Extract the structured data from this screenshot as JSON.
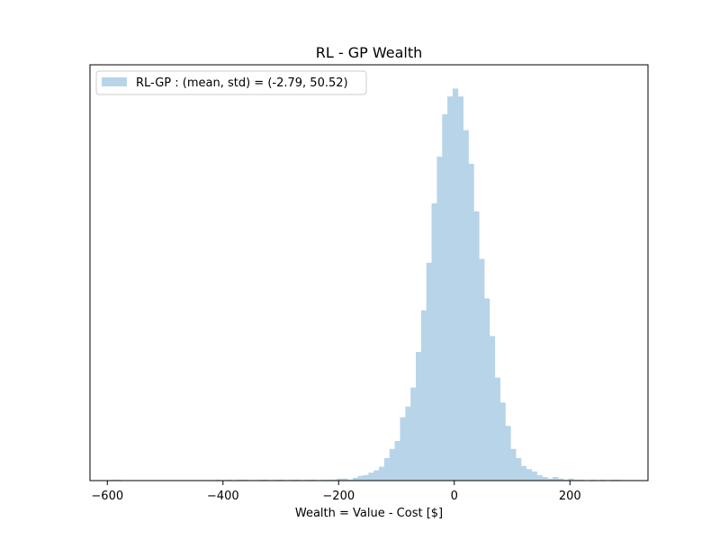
{
  "chart_data": {
    "type": "bar",
    "title": "RL - GP Wealth",
    "xlabel": "Wealth = Value - Cost [$]",
    "ylabel": "",
    "xlim": [
      -630,
      335
    ],
    "ylim": [
      0,
      1.05
    ],
    "x_ticks": [
      -600,
      -400,
      -200,
      0,
      200
    ],
    "y_ticks_shown": false,
    "grid": false,
    "legend_position": "top-left",
    "bar_color": "#b8d4e8",
    "series": [
      {
        "name": "RL-GP : (mean, std) = (-2.79, 50.52)",
        "bin_width": 9.1,
        "bins": [
          {
            "x": -589.9,
            "y": 0.002
          },
          {
            "x": -580.8,
            "y": 0.002
          },
          {
            "x": -407.9,
            "y": 0.002
          },
          {
            "x": -389.7,
            "y": 0.002
          },
          {
            "x": -371.5,
            "y": 0.002
          },
          {
            "x": -362.4,
            "y": 0.002
          },
          {
            "x": -335.1,
            "y": 0.002
          },
          {
            "x": -325.9,
            "y": 0.002
          },
          {
            "x": -307.7,
            "y": 0.002
          },
          {
            "x": -298.6,
            "y": 0.002
          },
          {
            "x": -280.4,
            "y": 0.002
          },
          {
            "x": -271.3,
            "y": 0.002
          },
          {
            "x": -253.1,
            "y": 0.002
          },
          {
            "x": -244.0,
            "y": 0.002
          },
          {
            "x": -225.8,
            "y": 0.002
          },
          {
            "x": -216.7,
            "y": 0.002
          },
          {
            "x": -207.6,
            "y": 0.002
          },
          {
            "x": -198.5,
            "y": 0.005
          },
          {
            "x": -189.4,
            "y": 0.005
          },
          {
            "x": -180.3,
            "y": 0.002
          },
          {
            "x": -171.2,
            "y": 0.007
          },
          {
            "x": -162.1,
            "y": 0.012
          },
          {
            "x": -153.0,
            "y": 0.014
          },
          {
            "x": -143.9,
            "y": 0.02
          },
          {
            "x": -134.8,
            "y": 0.026
          },
          {
            "x": -125.7,
            "y": 0.035
          },
          {
            "x": -116.6,
            "y": 0.057
          },
          {
            "x": -107.5,
            "y": 0.08
          },
          {
            "x": -98.4,
            "y": 0.1
          },
          {
            "x": -89.3,
            "y": 0.16
          },
          {
            "x": -80.2,
            "y": 0.187
          },
          {
            "x": -71.1,
            "y": 0.235
          },
          {
            "x": -62.0,
            "y": 0.325
          },
          {
            "x": -52.9,
            "y": 0.43
          },
          {
            "x": -43.8,
            "y": 0.55
          },
          {
            "x": -34.7,
            "y": 0.7
          },
          {
            "x": -25.6,
            "y": 0.818
          },
          {
            "x": -16.5,
            "y": 0.925
          },
          {
            "x": -7.4,
            "y": 0.97
          },
          {
            "x": 1.7,
            "y": 0.99
          },
          {
            "x": 10.8,
            "y": 0.97
          },
          {
            "x": 19.9,
            "y": 0.885
          },
          {
            "x": 29.0,
            "y": 0.8
          },
          {
            "x": 38.1,
            "y": 0.68
          },
          {
            "x": 47.2,
            "y": 0.56
          },
          {
            "x": 56.3,
            "y": 0.46
          },
          {
            "x": 65.4,
            "y": 0.365
          },
          {
            "x": 74.5,
            "y": 0.26
          },
          {
            "x": 83.6,
            "y": 0.197
          },
          {
            "x": 92.7,
            "y": 0.138
          },
          {
            "x": 101.8,
            "y": 0.08
          },
          {
            "x": 110.9,
            "y": 0.057
          },
          {
            "x": 120.0,
            "y": 0.037
          },
          {
            "x": 129.1,
            "y": 0.029
          },
          {
            "x": 138.2,
            "y": 0.023
          },
          {
            "x": 147.3,
            "y": 0.014
          },
          {
            "x": 156.4,
            "y": 0.009
          },
          {
            "x": 165.5,
            "y": 0.005
          },
          {
            "x": 174.6,
            "y": 0.009
          },
          {
            "x": 183.7,
            "y": 0.005
          },
          {
            "x": 192.8,
            "y": 0.002
          },
          {
            "x": 201.9,
            "y": 0.005
          },
          {
            "x": 211.0,
            "y": 0.002
          },
          {
            "x": 220.1,
            "y": 0.002
          },
          {
            "x": 238.3,
            "y": 0.002
          },
          {
            "x": 256.5,
            "y": 0.002
          },
          {
            "x": 274.7,
            "y": 0.002
          },
          {
            "x": 283.8,
            "y": 0.002
          }
        ]
      }
    ]
  }
}
